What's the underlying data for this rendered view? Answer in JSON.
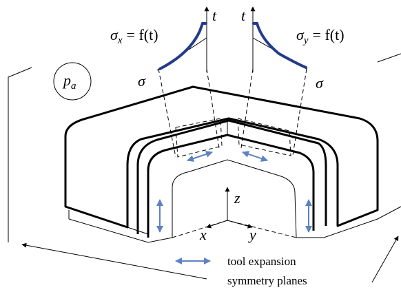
{
  "plots": [
    {
      "axis_vertical": "t",
      "axis_horizontal": "σ",
      "formula": {
        "symbol": "σ",
        "subscript": "x",
        "rhs": "= f(t)"
      }
    },
    {
      "axis_vertical": "t",
      "axis_horizontal": "σ",
      "formula": {
        "symbol": "σ",
        "subscript": "y",
        "rhs": "= f(t)"
      }
    }
  ],
  "pressure": {
    "symbol": "p",
    "subscript": "a"
  },
  "axes": {
    "z": "z",
    "x": "x",
    "y": "y"
  },
  "legend": {
    "tool_expansion": "tool expansion",
    "symmetry_planes": "symmetry planes"
  }
}
